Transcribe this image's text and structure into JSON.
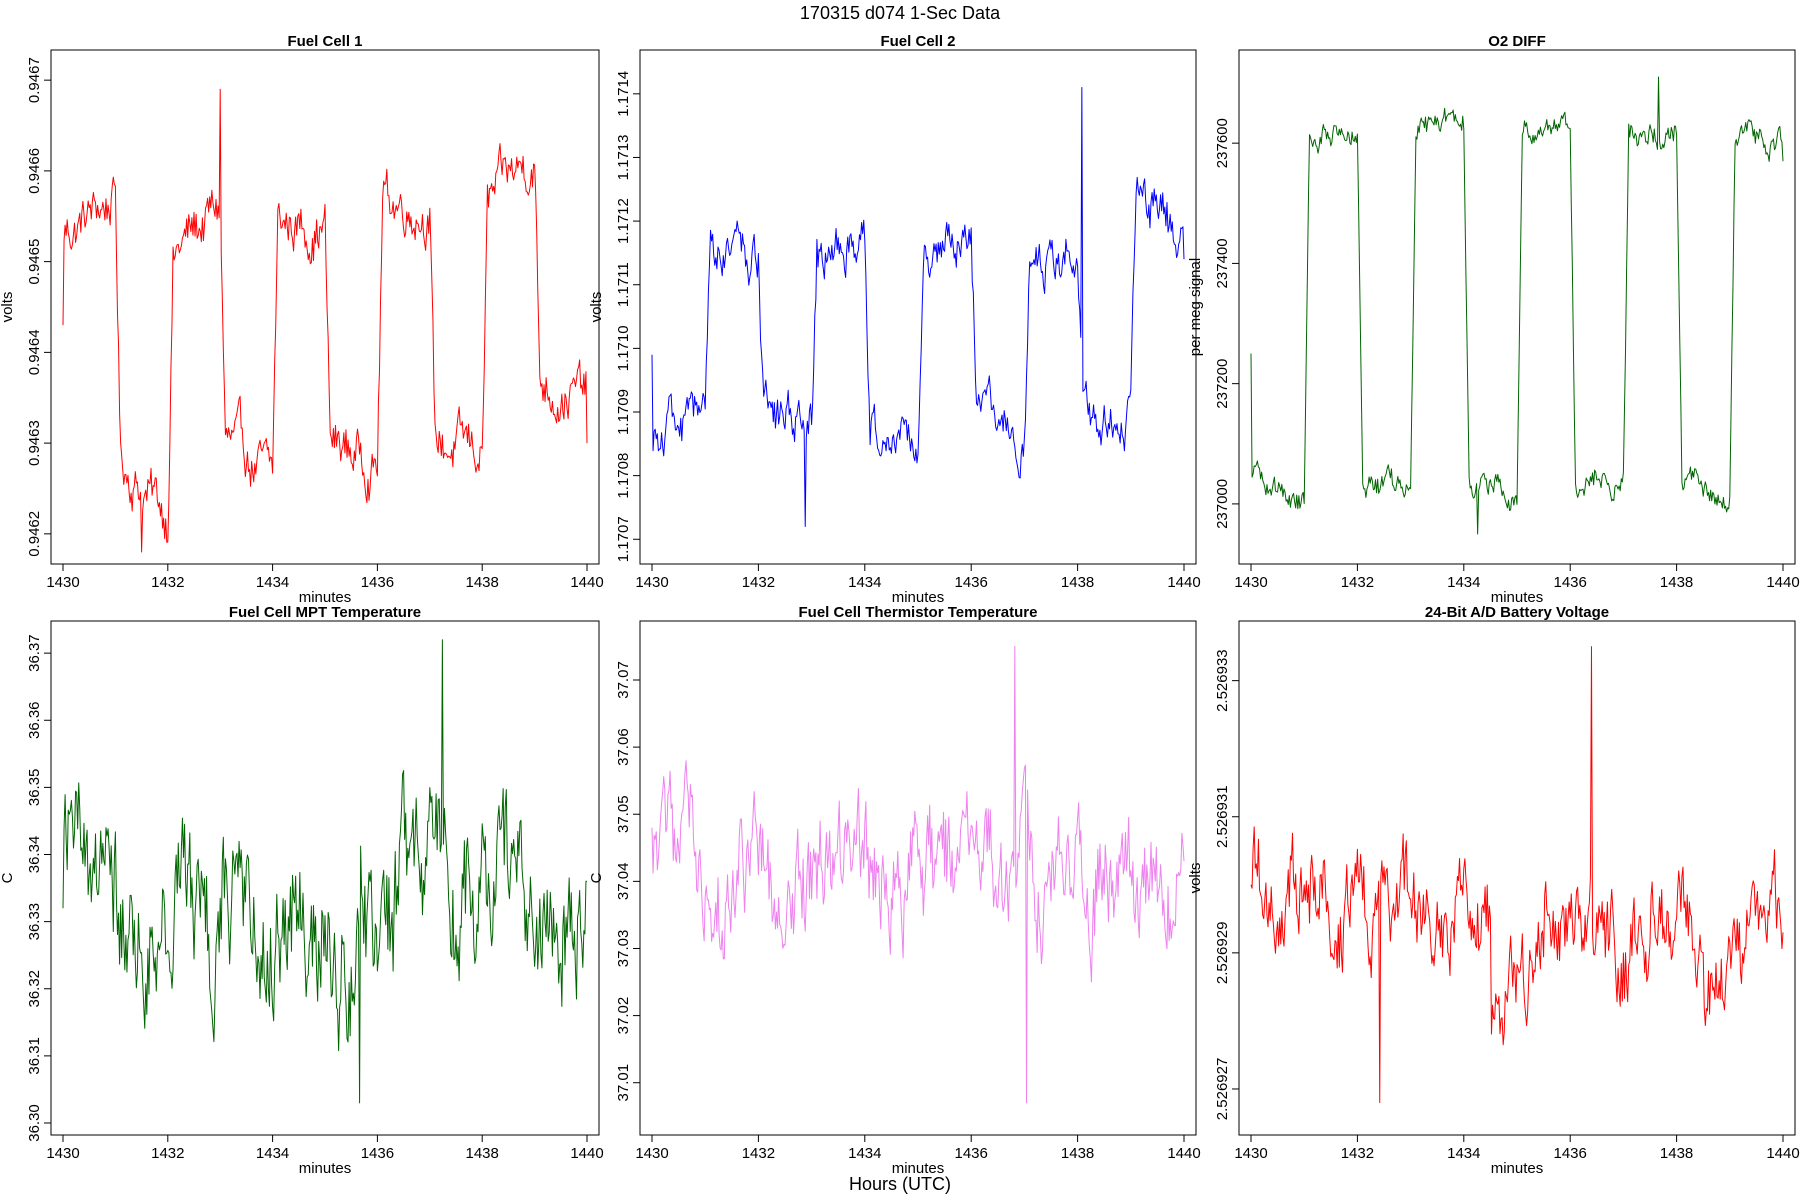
{
  "figure": {
    "title": "170315   d074   1-Sec Data",
    "bottom_label": "Hours (UTC)"
  },
  "chart_data": [
    {
      "type": "line",
      "title": "Fuel Cell 1",
      "xlabel": "minutes",
      "ylabel": "volts",
      "color": "#ff0000",
      "xlim": [
        1430,
        1440
      ],
      "ylim": [
        0.94618,
        0.94672
      ],
      "xticks": [
        "1430",
        "1432",
        "1434",
        "1436",
        "1438",
        "1440"
      ],
      "yticks": [
        "0.9462",
        "0.9463",
        "0.9464",
        "0.9465",
        "0.9466",
        "0.9467"
      ],
      "series": [
        {
          "name": "Fuel Cell 1",
          "segments": [
            [
              1430.0,
              1431.0,
              0.94653,
              0.94657
            ],
            [
              1431.1,
              1432.0,
              0.94628,
              0.94622
            ],
            [
              1432.1,
              1433.0,
              0.94651,
              0.94656
            ],
            [
              1433.1,
              1434.0,
              0.9463,
              0.94626
            ],
            [
              1434.1,
              1435.0,
              0.94654,
              0.94654
            ],
            [
              1435.1,
              1436.0,
              0.9463,
              0.94628
            ],
            [
              1436.1,
              1437.0,
              0.94657,
              0.94656
            ],
            [
              1437.1,
              1438.0,
              0.9463,
              0.94629
            ],
            [
              1438.1,
              1439.0,
              0.94656,
              0.94662
            ],
            [
              1439.1,
              1440.0,
              0.94637,
              0.94635
            ]
          ],
          "noise": 3.5e-05,
          "min": 0.94618,
          "max": 0.94669,
          "start": 0.94643,
          "end": 0.9463
        }
      ]
    },
    {
      "type": "line",
      "title": "Fuel Cell 2",
      "xlabel": "minutes",
      "ylabel": "volts",
      "color": "#0000ff",
      "xlim": [
        1430,
        1440
      ],
      "ylim": [
        1.17068,
        1.17145
      ],
      "xticks": [
        "1430",
        "1432",
        "1434",
        "1436",
        "1438",
        "1440"
      ],
      "yticks": [
        "1.1707",
        "1.1708",
        "1.1709",
        "1.1710",
        "1.1711",
        "1.1712",
        "1.1713",
        "1.1714"
      ],
      "series": [
        {
          "name": "Fuel Cell 2",
          "segments": [
            [
              1430.0,
              1431.0,
              1.17087,
              1.17088
            ],
            [
              1431.1,
              1432.0,
              1.17115,
              1.17113
            ],
            [
              1432.1,
              1433.0,
              1.17089,
              1.17088
            ],
            [
              1433.1,
              1434.0,
              1.17115,
              1.17117
            ],
            [
              1434.1,
              1435.0,
              1.17088,
              1.17086
            ],
            [
              1435.1,
              1436.0,
              1.17116,
              1.17115
            ],
            [
              1436.1,
              1437.0,
              1.1709,
              1.17084
            ],
            [
              1437.1,
              1438.0,
              1.17114,
              1.17116
            ],
            [
              1438.1,
              1439.0,
              1.1709,
              1.1709
            ],
            [
              1439.1,
              1440.0,
              1.17125,
              1.17117
            ]
          ],
          "noise": 5e-05,
          "min": 1.17072,
          "max": 1.17141,
          "start": 1.17099,
          "end": 1.17114
        }
      ]
    },
    {
      "type": "line",
      "title": "O2 DIFF",
      "xlabel": "minutes",
      "ylabel": "per meg signal",
      "color": "#006400",
      "xlim": [
        1430,
        1440
      ],
      "ylim": [
        236920,
        237735
      ],
      "xticks": [
        "1430",
        "1432",
        "1434",
        "1436",
        "1438",
        "1440"
      ],
      "yticks": [
        "237000",
        "237200",
        "237400",
        "237600"
      ],
      "series": [
        {
          "name": "O2 DIFF",
          "segments": [
            [
              1430.0,
              1431.0,
              237040,
              237000
            ],
            [
              1431.1,
              1432.0,
              237610,
              237620
            ],
            [
              1432.1,
              1433.0,
              237020,
              237030
            ],
            [
              1433.1,
              1434.0,
              237620,
              237640
            ],
            [
              1434.1,
              1435.0,
              237030,
              237020
            ],
            [
              1435.1,
              1436.0,
              237630,
              237620
            ],
            [
              1436.1,
              1437.0,
              237040,
              237040
            ],
            [
              1437.1,
              1438.0,
              237610,
              237620
            ],
            [
              1438.1,
              1439.0,
              237020,
              237010
            ],
            [
              1439.1,
              1440.0,
              237610,
              237600
            ]
          ],
          "noise": 30,
          "min": 236950,
          "max": 237710,
          "start": 237250,
          "end": 237570
        }
      ]
    },
    {
      "type": "line",
      "title": "Fuel Cell MPT Temperature",
      "xlabel": "minutes",
      "ylabel": "C",
      "color": "#006400",
      "xlim": [
        1430,
        1440
      ],
      "ylim": [
        36.3,
        36.373
      ],
      "xticks": [
        "1430",
        "1432",
        "1434",
        "1436",
        "1438",
        "1440"
      ],
      "yticks": [
        "36.30",
        "36.31",
        "36.32",
        "36.33",
        "36.34",
        "36.35",
        "36.36",
        "36.37"
      ],
      "series": [
        {
          "name": "Fuel Cell MPT Temperature",
          "segments": [
            [
              1430.0,
              1431.0,
              36.338,
              36.333
            ],
            [
              1431.0,
              1433.0,
              36.333,
              36.332
            ],
            [
              1433.0,
              1435.0,
              36.334,
              36.333
            ],
            [
              1435.0,
              1436.3,
              36.328,
              36.326
            ],
            [
              1436.3,
              1438.0,
              36.338,
              36.336
            ],
            [
              1438.0,
              1440.0,
              36.335,
              36.333
            ]
          ],
          "noise": 0.014,
          "min": 36.303,
          "max": 36.372,
          "start": 36.332,
          "end": 36.336
        }
      ]
    },
    {
      "type": "line",
      "title": "Fuel Cell Thermistor Temperature",
      "xlabel": "minutes",
      "ylabel": "C",
      "color": "#ee82ee",
      "xlim": [
        1430,
        1440
      ],
      "ylim": [
        37.004,
        37.077
      ],
      "xticks": [
        "1430",
        "1432",
        "1434",
        "1436",
        "1438",
        "1440"
      ],
      "yticks": [
        "37.01",
        "37.02",
        "37.03",
        "37.04",
        "37.05",
        "37.06",
        "37.07"
      ],
      "series": [
        {
          "name": "Fuel Cell Thermistor Temperature",
          "segments": [
            [
              1430.0,
              1432.0,
              37.041,
              37.04
            ],
            [
              1432.0,
              1434.0,
              37.04,
              37.041
            ],
            [
              1434.0,
              1436.0,
              37.041,
              37.04
            ],
            [
              1436.0,
              1438.0,
              37.04,
              37.041
            ],
            [
              1438.0,
              1440.0,
              37.042,
              37.042
            ]
          ],
          "noise": 0.011,
          "min": 37.007,
          "max": 37.075,
          "start": 37.048,
          "end": 37.043
        }
      ]
    },
    {
      "type": "line",
      "title": "24-Bit A/D Battery Voltage",
      "xlabel": "minutes",
      "ylabel": "volts",
      "color": "#ff0000",
      "xlim": [
        1430,
        1440
      ],
      "ylim": [
        2.5269265,
        2.5269337
      ],
      "xticks": [
        "1430",
        "1432",
        "1434",
        "1436",
        "1438",
        "1440"
      ],
      "yticks": [
        "2.526927",
        "2.526929",
        "2.526931",
        "2.526933"
      ],
      "series": [
        {
          "name": "24-Bit A/D Battery Voltage",
          "segments": [
            [
              1430.0,
              1431.5,
              2.5269303,
              2.52693
            ],
            [
              1431.5,
              1434.5,
              2.5269297,
              2.5269296
            ],
            [
              1434.5,
              1435.5,
              2.5269283,
              2.5269288
            ],
            [
              1435.5,
              1437.5,
              2.5269295,
              2.526929
            ],
            [
              1437.5,
              1438.5,
              2.5269296,
              2.5269294
            ],
            [
              1438.5,
              1439.3,
              2.5269285,
              2.5269288
            ],
            [
              1439.3,
              1440.0,
              2.5269294,
              2.5269292
            ]
          ],
          "noise": 9e-07,
          "min": 2.5269268,
          "max": 2.5269335,
          "start": 2.52693,
          "end": 2.5269293
        }
      ]
    }
  ]
}
